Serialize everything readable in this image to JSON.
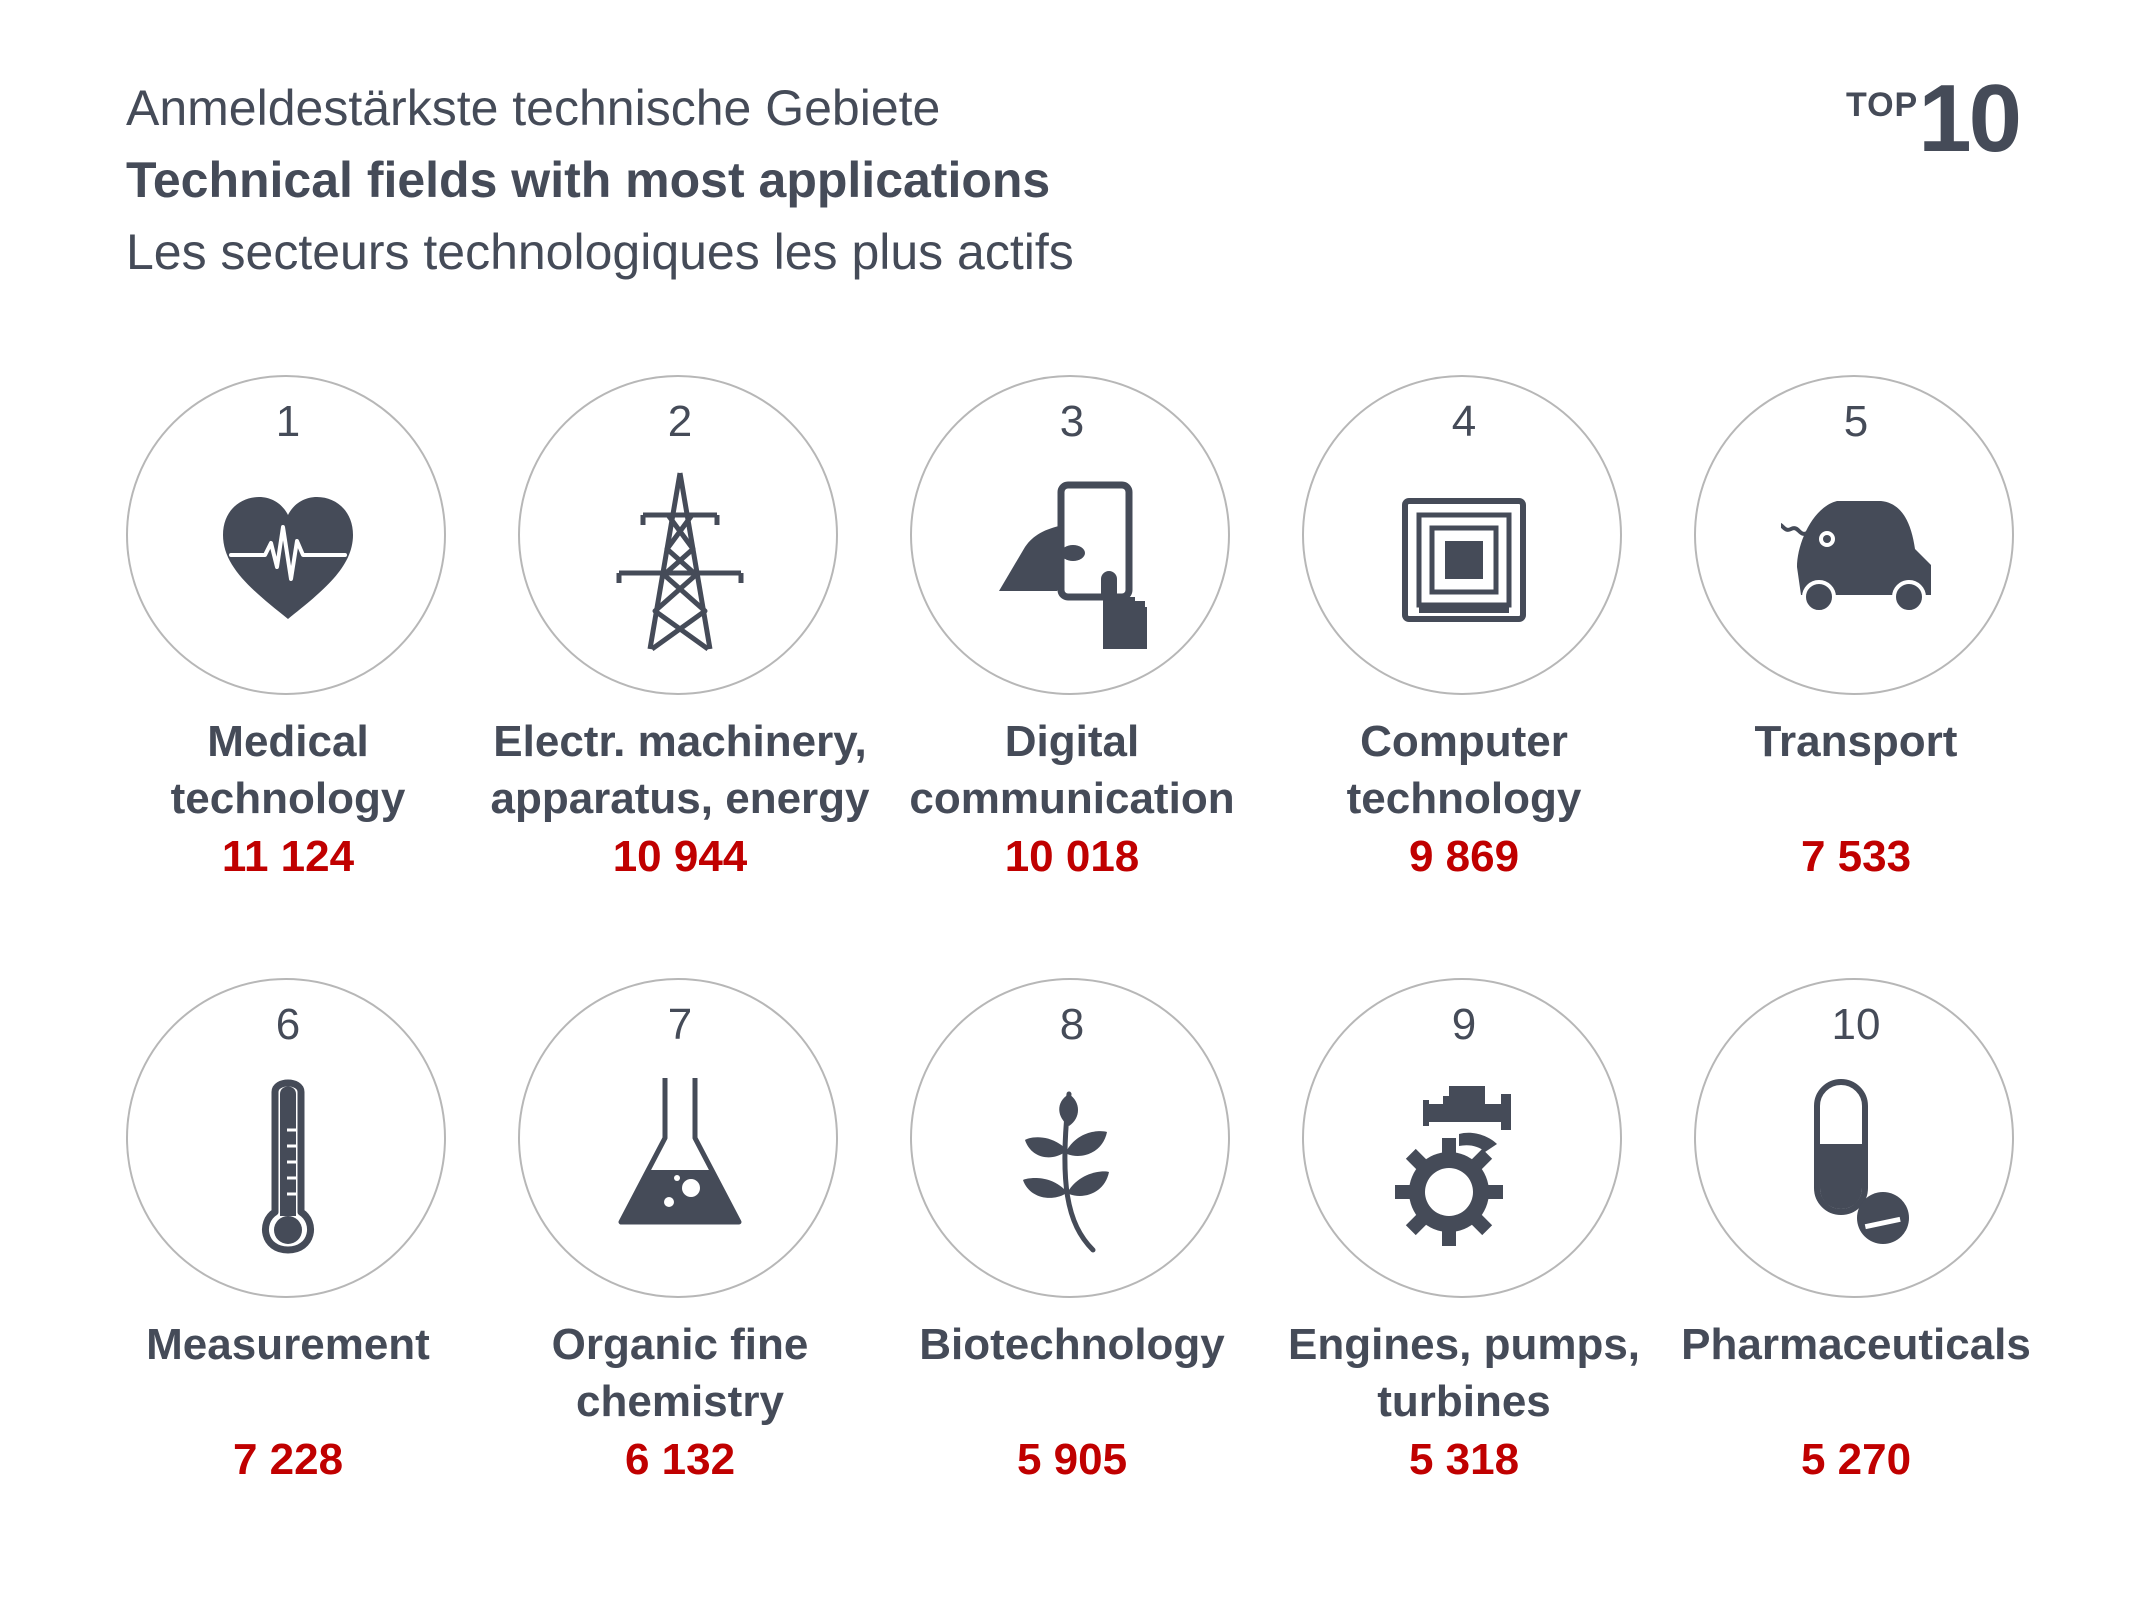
{
  "header": {
    "title_de": "Anmeldestärkste technische Gebiete",
    "title_en": "Technical fields with most applications",
    "title_fr": "Les secteurs technologiques les plus actifs",
    "badge_top": "TOP",
    "badge_num": "10"
  },
  "colors": {
    "text": "#454b58",
    "value": "#c00000",
    "icon": "#454b58",
    "circle_border": "#b7b7b7"
  },
  "chart_data": {
    "type": "table",
    "categories": [
      "Medical technology",
      "Electr. machinery, apparatus, energy",
      "Digital communication",
      "Computer technology",
      "Transport",
      "Measurement",
      "Organic fine chemistry",
      "Biotechnology",
      "Engines, pumps, turbines",
      "Pharmaceuticals"
    ],
    "values": [
      11124,
      10944,
      10018,
      9869,
      7533,
      7228,
      6132,
      5905,
      5318,
      5270
    ]
  },
  "items": [
    {
      "rank": "1",
      "label": "Medical\ntechnology",
      "value": "11 124",
      "icon": "heart-pulse-icon"
    },
    {
      "rank": "2",
      "label": "Electr. machinery,\napparatus, energy",
      "value": "10 944",
      "icon": "power-pylon-icon"
    },
    {
      "rank": "3",
      "label": "Digital\ncommunication",
      "value": "10 018",
      "icon": "tablet-hand-icon"
    },
    {
      "rank": "4",
      "label": "Computer\ntechnology",
      "value": "9 869",
      "icon": "chip-icon"
    },
    {
      "rank": "5",
      "label": "Transport",
      "value": "7 533",
      "icon": "electric-car-icon"
    },
    {
      "rank": "6",
      "label": "Measurement",
      "value": "7 228",
      "icon": "thermometer-icon"
    },
    {
      "rank": "7",
      "label": "Organic fine\nchemistry",
      "value": "6 132",
      "icon": "flask-icon"
    },
    {
      "rank": "8",
      "label": "Biotechnology",
      "value": "5 905",
      "icon": "plant-icon"
    },
    {
      "rank": "9",
      "label": "Engines, pumps,\nturbines",
      "value": "5 318",
      "icon": "engine-gear-icon"
    },
    {
      "rank": "10",
      "label": "Pharmaceuticals",
      "value": "5 270",
      "icon": "pill-tablet-icon"
    }
  ]
}
